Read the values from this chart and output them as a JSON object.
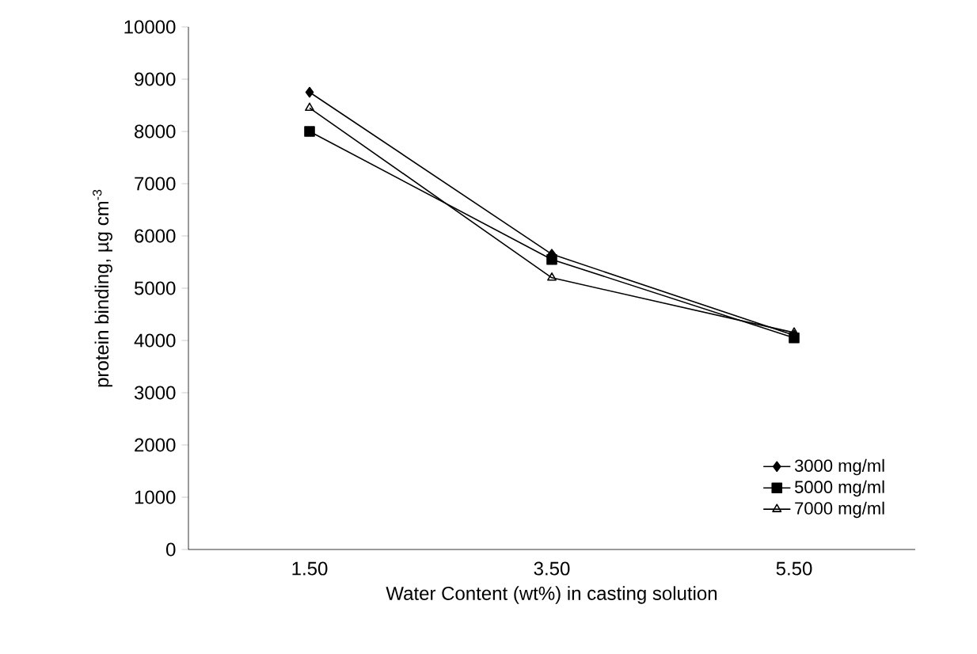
{
  "chart_data": {
    "type": "line",
    "xlabel": "Water Content (wt%) in casting solution",
    "ylabel": "protein binding, µg cm$^{-3}$",
    "categories": [
      "1.50",
      "3.50",
      "5.50"
    ],
    "series": [
      {
        "name": "3000 mg/ml",
        "color": "#000000",
        "marker": "diamond",
        "values": [
          8750,
          5650,
          4100
        ]
      },
      {
        "name": "5000 mg/ml",
        "color": "#000000",
        "marker": "square",
        "values": [
          8000,
          5550,
          4050
        ]
      },
      {
        "name": "7000 mg/ml",
        "color": "#000000",
        "marker": "triangle",
        "values": [
          8450,
          5200,
          4150
        ]
      }
    ],
    "ylim": [
      0,
      10000
    ],
    "yticks": [
      0,
      1000,
      2000,
      3000,
      4000,
      5000,
      6000,
      7000,
      8000,
      9000,
      10000
    ],
    "legend": "bottom right",
    "grid": false,
    "line_style": "solid"
  }
}
